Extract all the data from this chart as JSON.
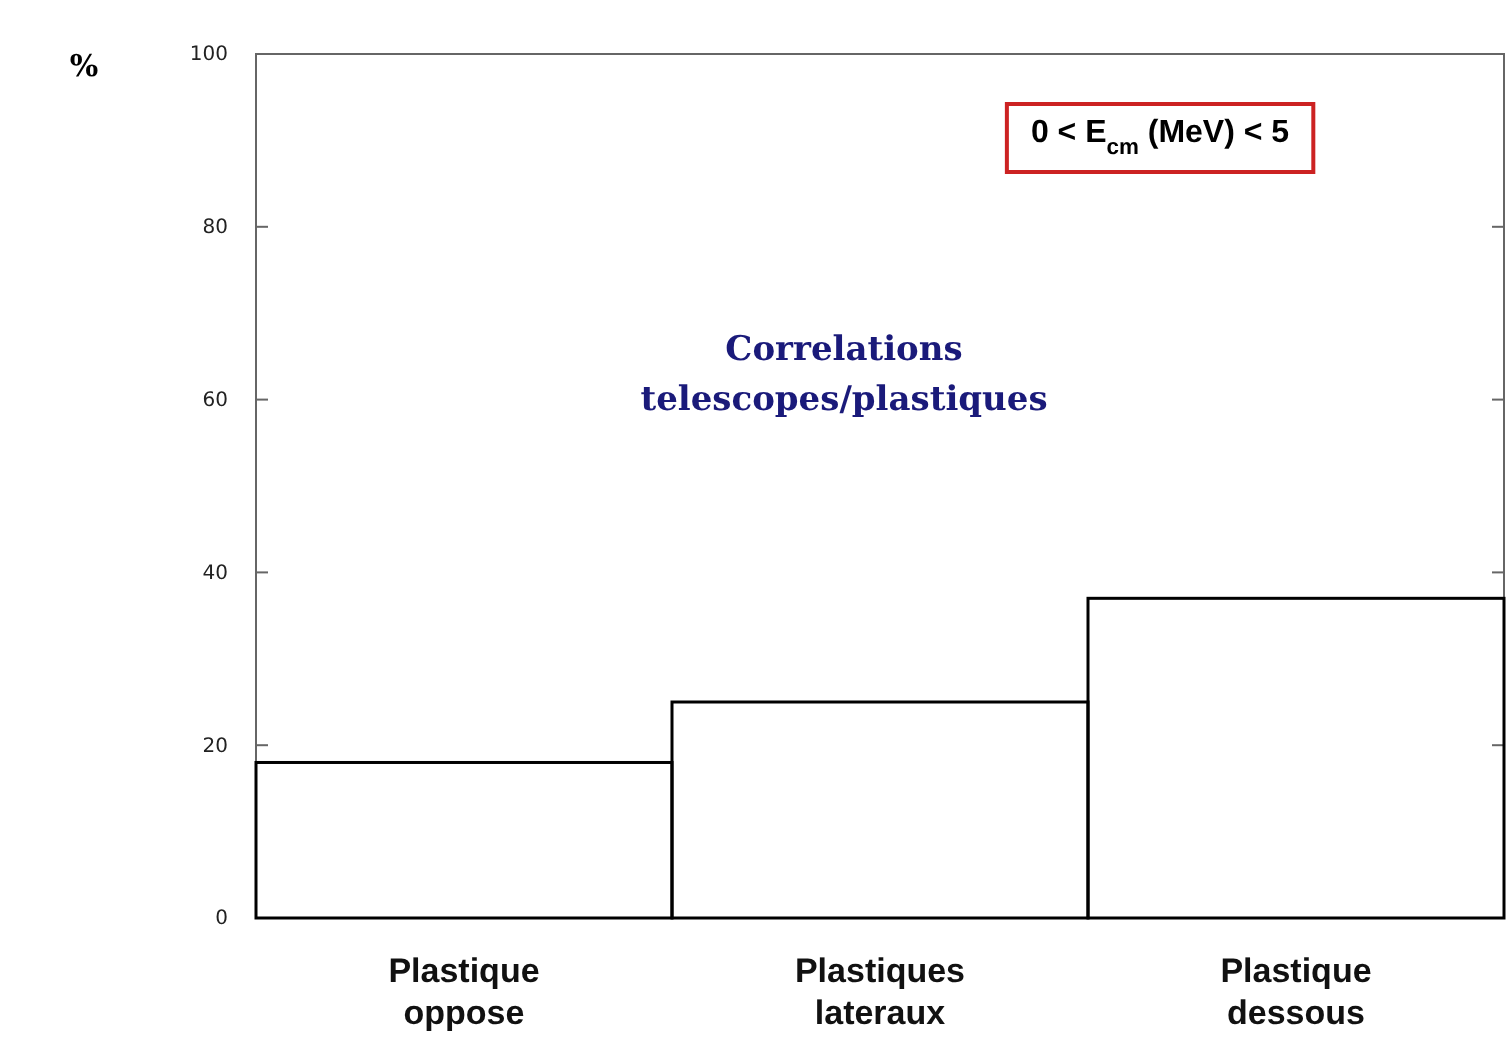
{
  "chart_data": {
    "type": "bar",
    "title": "Correlations telescopes/plastiques",
    "ylabel": "%",
    "categories": [
      "Plastique oppose",
      "Plastiques lateraux",
      "Plastique dessous"
    ],
    "values": [
      18,
      25,
      37
    ],
    "color": "#000000",
    "ylim": [
      0,
      100
    ],
    "yticks": [
      0,
      20,
      40,
      60,
      80,
      100
    ],
    "grid": false,
    "annotations": [
      "0 < E$_{cm}$ (MeV) < 5"
    ]
  }
}
